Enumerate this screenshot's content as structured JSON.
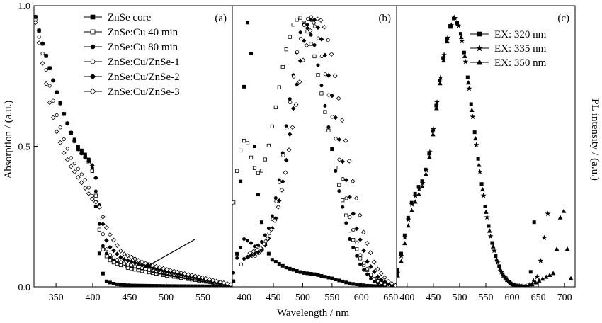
{
  "chart_data": [
    {
      "panel": "(a)",
      "type": "scatter",
      "ylabel": "Absorption / (a.u.)",
      "xlim": [
        320,
        590
      ],
      "ylim": [
        0,
        1.0
      ],
      "xticks": [
        350,
        400,
        450,
        500,
        550
      ],
      "yticks": [
        0.0,
        0.5,
        1.0
      ],
      "ytick_labels": [
        "0.0",
        "0.5",
        "1.0"
      ],
      "legend": "top-right",
      "annotation": "arrow pointing to shell-coated absorption tails",
      "series": [
        {
          "name": "ZnSe core",
          "marker": "square-filled",
          "x": [
            322,
            330,
            340,
            350,
            360,
            370,
            380,
            390,
            398,
            402,
            405,
            408,
            412,
            418,
            430,
            450,
            500,
            550,
            588
          ],
          "y": [
            0.96,
            0.88,
            0.79,
            0.7,
            0.62,
            0.55,
            0.5,
            0.47,
            0.44,
            0.36,
            0.26,
            0.14,
            0.06,
            0.02,
            0.01,
            0.005,
            0.003,
            0.002,
            0.001
          ]
        },
        {
          "name": "ZnSe:Cu 40 min",
          "marker": "square-open",
          "x": [
            322,
            330,
            340,
            350,
            360,
            370,
            380,
            390,
            398,
            402,
            406,
            410,
            415,
            425,
            450,
            500,
            550,
            588
          ],
          "y": [
            0.96,
            0.88,
            0.79,
            0.7,
            0.62,
            0.55,
            0.49,
            0.46,
            0.43,
            0.38,
            0.28,
            0.18,
            0.12,
            0.09,
            0.065,
            0.04,
            0.02,
            0.005
          ]
        },
        {
          "name": "ZnSe:Cu 80 min",
          "marker": "circle-filled",
          "x": [
            322,
            330,
            340,
            350,
            360,
            370,
            380,
            390,
            398,
            402,
            406,
            410,
            415,
            425,
            450,
            500,
            550,
            588
          ],
          "y": [
            0.96,
            0.88,
            0.79,
            0.7,
            0.62,
            0.55,
            0.5,
            0.47,
            0.44,
            0.39,
            0.3,
            0.2,
            0.13,
            0.1,
            0.075,
            0.045,
            0.022,
            0.006
          ]
        },
        {
          "name": "ZnSe:Cu/ZnSe-1",
          "marker": "circle-open",
          "x": [
            322,
            330,
            340,
            350,
            360,
            370,
            380,
            390,
            400,
            405,
            410,
            420,
            440,
            470,
            500,
            550,
            588
          ],
          "y": [
            0.95,
            0.85,
            0.73,
            0.62,
            0.53,
            0.46,
            0.42,
            0.38,
            0.32,
            0.3,
            0.23,
            0.12,
            0.085,
            0.065,
            0.05,
            0.025,
            0.006
          ]
        },
        {
          "name": "ZnSe:Cu/ZnSe-2",
          "marker": "diamond-filled",
          "x": [
            322,
            330,
            340,
            350,
            360,
            370,
            380,
            390,
            400,
            405,
            410,
            420,
            440,
            470,
            500,
            550,
            588
          ],
          "y": [
            0.96,
            0.88,
            0.79,
            0.7,
            0.62,
            0.55,
            0.49,
            0.46,
            0.43,
            0.38,
            0.27,
            0.15,
            0.1,
            0.075,
            0.055,
            0.028,
            0.007
          ]
        },
        {
          "name": "ZnSe:Cu/ZnSe-3",
          "marker": "diamond-open",
          "x": [
            322,
            330,
            340,
            350,
            360,
            370,
            380,
            390,
            400,
            405,
            410,
            420,
            440,
            470,
            500,
            550,
            588
          ],
          "y": [
            0.94,
            0.82,
            0.67,
            0.56,
            0.48,
            0.43,
            0.39,
            0.35,
            0.31,
            0.3,
            0.28,
            0.2,
            0.12,
            0.085,
            0.062,
            0.032,
            0.008
          ]
        }
      ]
    },
    {
      "panel": "(b)",
      "type": "scatter",
      "xlabel": "Wavelength / nm",
      "xlim": [
        380,
        660
      ],
      "ylim": [
        0,
        1.0
      ],
      "xticks": [
        400,
        450,
        500,
        550,
        600,
        650
      ],
      "series": [
        {
          "name": "ZnSe core",
          "marker": "square-filled",
          "x": [
            382,
            390,
            398,
            403,
            407,
            410,
            413,
            418,
            425,
            435,
            445,
            470,
            500,
            520,
            550,
            580,
            610,
            640,
            658
          ],
          "y": [
            0.02,
            0.15,
            0.6,
            0.88,
            0.96,
            0.93,
            0.78,
            0.5,
            0.3,
            0.16,
            0.1,
            0.07,
            0.05,
            0.045,
            0.03,
            0.012,
            0.004,
            0.001,
            0.0
          ]
        },
        {
          "name": "ZnSe:Cu 40 min",
          "marker": "square-open",
          "x": [
            382,
            390,
            398,
            405,
            412,
            420,
            428,
            440,
            455,
            470,
            485,
            495,
            505,
            520,
            540,
            560,
            580,
            600,
            620,
            640,
            658
          ],
          "y": [
            0.3,
            0.45,
            0.52,
            0.52,
            0.46,
            0.41,
            0.4,
            0.48,
            0.65,
            0.83,
            0.94,
            0.96,
            0.93,
            0.82,
            0.6,
            0.38,
            0.2,
            0.09,
            0.03,
            0.01,
            0.0
          ]
        },
        {
          "name": "ZnSe:Cu 80 min",
          "marker": "circle-filled",
          "x": [
            382,
            390,
            400,
            410,
            420,
            430,
            445,
            460,
            480,
            495,
            505,
            520,
            540,
            560,
            580,
            600,
            620,
            640,
            658
          ],
          "y": [
            0.05,
            0.12,
            0.17,
            0.16,
            0.14,
            0.16,
            0.22,
            0.38,
            0.7,
            0.9,
            0.95,
            0.86,
            0.62,
            0.36,
            0.17,
            0.07,
            0.02,
            0.005,
            0.0
          ]
        },
        {
          "name": "ZnSe:Cu/ZnSe-1",
          "marker": "circle-open",
          "x": [
            395,
            402,
            410,
            420,
            430,
            445,
            460,
            475,
            490,
            505,
            515,
            525,
            540,
            560,
            580,
            600,
            620,
            640,
            658
          ],
          "y": [
            0.08,
            0.1,
            0.11,
            0.11,
            0.13,
            0.2,
            0.36,
            0.6,
            0.83,
            0.95,
            0.96,
            0.9,
            0.74,
            0.48,
            0.25,
            0.1,
            0.03,
            0.008,
            0.0
          ]
        },
        {
          "name": "ZnSe:Cu/ZnSe-2",
          "marker": "diamond-filled",
          "x": [
            400,
            410,
            420,
            430,
            440,
            455,
            470,
            485,
            500,
            512,
            522,
            535,
            550,
            570,
            590,
            610,
            630,
            650,
            658
          ],
          "y": [
            0.1,
            0.11,
            0.12,
            0.13,
            0.16,
            0.25,
            0.42,
            0.65,
            0.86,
            0.95,
            0.95,
            0.86,
            0.68,
            0.42,
            0.22,
            0.09,
            0.03,
            0.005,
            0.0
          ]
        },
        {
          "name": "ZnSe:Cu/ZnSe-3",
          "marker": "diamond-open",
          "x": [
            410,
            420,
            430,
            440,
            455,
            470,
            485,
            500,
            515,
            528,
            538,
            550,
            565,
            585,
            605,
            625,
            645,
            658
          ],
          "y": [
            0.12,
            0.13,
            0.14,
            0.17,
            0.25,
            0.4,
            0.6,
            0.8,
            0.93,
            0.96,
            0.92,
            0.82,
            0.62,
            0.38,
            0.18,
            0.07,
            0.02,
            0.005
          ]
        }
      ]
    },
    {
      "panel": "(c)",
      "type": "scatter",
      "ylabel": "PL intensity / (a.u.)",
      "xlim": [
        380,
        720
      ],
      "ylim": [
        0,
        1.0
      ],
      "xticks": [
        400,
        450,
        500,
        550,
        600,
        650,
        700
      ],
      "legend": "top-right",
      "series": [
        {
          "name": "EX: 320 nm",
          "marker": "square-filled",
          "x": [
            382,
            390,
            400,
            410,
            420,
            430,
            440,
            450,
            460,
            470,
            480,
            490,
            500,
            510,
            520,
            530,
            540,
            550,
            560,
            570,
            580,
            590,
            600,
            610,
            620,
            630,
            636,
            638,
            640,
            642
          ],
          "y": [
            0.06,
            0.13,
            0.23,
            0.31,
            0.35,
            0.38,
            0.45,
            0.57,
            0.71,
            0.83,
            0.92,
            0.96,
            0.92,
            0.82,
            0.68,
            0.53,
            0.39,
            0.27,
            0.17,
            0.1,
            0.05,
            0.025,
            0.01,
            0.004,
            0.002,
            0.001,
            0.06,
            0.12,
            0.18,
            0.23
          ]
        },
        {
          "name": "EX: 335 nm",
          "marker": "star",
          "x": [
            382,
            390,
            400,
            410,
            420,
            430,
            440,
            450,
            460,
            470,
            480,
            490,
            500,
            510,
            520,
            530,
            540,
            550,
            560,
            570,
            580,
            590,
            600,
            610,
            620,
            630,
            650,
            655,
            660,
            665,
            668
          ],
          "y": [
            0.05,
            0.12,
            0.22,
            0.3,
            0.34,
            0.37,
            0.44,
            0.56,
            0.7,
            0.82,
            0.91,
            0.96,
            0.92,
            0.82,
            0.68,
            0.53,
            0.39,
            0.27,
            0.17,
            0.1,
            0.05,
            0.025,
            0.01,
            0.004,
            0.002,
            0.001,
            0.04,
            0.1,
            0.16,
            0.22,
            0.26
          ]
        },
        {
          "name": "EX: 350 nm",
          "marker": "triangle-filled",
          "x": [
            382,
            390,
            400,
            410,
            420,
            430,
            440,
            450,
            460,
            470,
            480,
            490,
            500,
            510,
            520,
            530,
            540,
            550,
            560,
            570,
            580,
            590,
            600,
            610,
            620,
            630,
            680,
            686,
            692,
            697,
            702,
            707,
            712
          ],
          "y": [
            0.04,
            0.1,
            0.2,
            0.28,
            0.32,
            0.36,
            0.43,
            0.55,
            0.69,
            0.81,
            0.91,
            0.96,
            0.92,
            0.82,
            0.68,
            0.53,
            0.39,
            0.27,
            0.17,
            0.1,
            0.05,
            0.025,
            0.01,
            0.004,
            0.002,
            0.001,
            0.05,
            0.15,
            0.25,
            0.3,
            0.2,
            0.1,
            0.03
          ]
        }
      ]
    }
  ]
}
